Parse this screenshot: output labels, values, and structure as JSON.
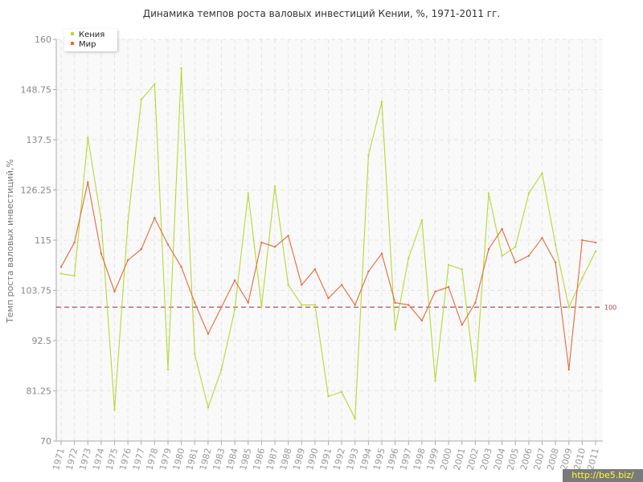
{
  "chart_data": {
    "type": "line",
    "title": "Динамика темпов роста валовых инвестиций Кении, %, 1971-2011 гг.",
    "xlabel": "",
    "ylabel": "Темп роста валовых инвестиций,%",
    "ylim": [
      70,
      160
    ],
    "yticks": [
      "70",
      "81.25",
      "92.5",
      "103.75",
      "115",
      "126.25",
      "137.5",
      "148.75",
      "160"
    ],
    "x": [
      1971,
      1972,
      1973,
      1974,
      1975,
      1976,
      1977,
      1978,
      1979,
      1980,
      1981,
      1982,
      1983,
      1984,
      1985,
      1986,
      1987,
      1988,
      1989,
      1990,
      1991,
      1992,
      1993,
      1994,
      1995,
      1996,
      1997,
      1998,
      1999,
      2000,
      2001,
      2002,
      2003,
      2004,
      2005,
      2006,
      2007,
      2008,
      2009,
      2010,
      2011
    ],
    "series": [
      {
        "name": "Кения",
        "color": "#b5d936",
        "values": [
          107.5,
          107,
          138,
          119.5,
          77,
          119,
          146.5,
          150,
          86,
          153.5,
          89.5,
          77.5,
          86,
          99.5,
          125.5,
          100,
          127,
          105,
          100.5,
          100.5,
          80,
          81,
          75,
          134,
          146,
          95,
          111,
          119.5,
          83.5,
          109.5,
          108.5,
          83.5,
          125.5,
          111.5,
          113.5,
          125.5,
          130,
          114,
          100,
          106.5,
          112.5
        ]
      },
      {
        "name": "Мир",
        "color": "#e26a3c",
        "values": [
          109,
          114.5,
          128,
          112,
          103.5,
          110.5,
          113,
          120,
          114,
          109,
          101,
          94,
          100,
          106,
          101,
          114.5,
          113.5,
          116,
          105,
          108.5,
          102,
          105,
          100.5,
          108,
          112,
          101,
          100.5,
          97,
          103.5,
          104.5,
          96,
          101,
          113,
          117.5,
          110,
          111.5,
          115.5,
          110,
          86,
          115,
          114.5
        ]
      }
    ],
    "reference_line": {
      "value": 100,
      "label": "100",
      "color": "#b03a4a"
    },
    "grid": true,
    "legend": "top-left"
  },
  "watermark": "http://be5.biz/",
  "colors": {
    "plot_background": "#f9f9f9",
    "grid": "#e4e4e4",
    "axis": "#aaaaaa",
    "tick_text": "#888888"
  }
}
